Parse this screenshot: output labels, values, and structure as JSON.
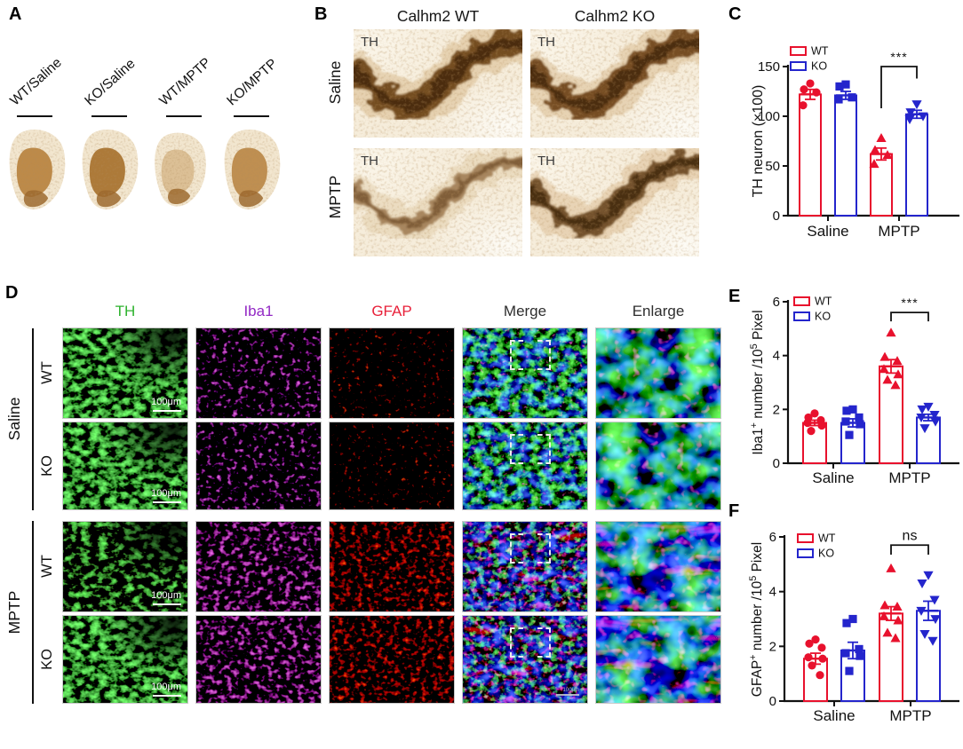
{
  "figure": {
    "panels": {
      "A": {
        "label": "A",
        "labels": [
          "WT/Saline",
          "KO/Saline",
          "WT/MPTP",
          "KO/MPTP"
        ]
      },
      "B": {
        "label": "B",
        "columns": [
          "Calhm2 WT",
          "Calhm2 KO"
        ],
        "rows": [
          "Saline",
          "MPTP"
        ],
        "stain": "TH"
      },
      "C": {
        "label": "C"
      },
      "D": {
        "label": "D",
        "columns": [
          {
            "label": "TH",
            "color": "#2fb32f"
          },
          {
            "label": "Iba1",
            "color": "#9228c4"
          },
          {
            "label": "GFAP",
            "color": "#e8213a"
          },
          {
            "label": "Merge",
            "color": "#2e2e2e"
          },
          {
            "label": "Enlarge",
            "color": "#2e2e2e"
          }
        ],
        "groups": [
          {
            "label": "Saline",
            "rows": [
              "WT",
              "KO"
            ]
          },
          {
            "label": "MPTP",
            "rows": [
              "WT",
              "KO"
            ]
          }
        ],
        "scale_bar": "100μm"
      },
      "E": {
        "label": "E"
      },
      "F": {
        "label": "F"
      }
    }
  },
  "chart_data": [
    {
      "id": "C",
      "type": "bar",
      "ylabel": "TH neuron (×100)",
      "ylabel_segments": [
        {
          "t": "TH neuron (×100)"
        }
      ],
      "ylim": [
        0,
        150
      ],
      "yticks": [
        0,
        50,
        100,
        150
      ],
      "groups": [
        "Saline",
        "MPTP"
      ],
      "legend": [
        "WT",
        "KO"
      ],
      "legend_position": "top-left",
      "colors": {
        "WT": "#e8112d",
        "KO": "#2425cc"
      },
      "bars": [
        {
          "group": "Saline",
          "series": "WT",
          "marker": "circle",
          "mean": 122,
          "sem": 5,
          "points": [
            133,
            127,
            124,
            111
          ]
        },
        {
          "group": "Saline",
          "series": "KO",
          "marker": "square",
          "mean": 121,
          "sem": 4,
          "points": [
            132,
            130,
            119,
            117
          ]
        },
        {
          "group": "MPTP",
          "series": "WT",
          "marker": "triangle-up",
          "mean": 62,
          "sem": 6,
          "points": [
            78,
            66,
            61,
            52
          ]
        },
        {
          "group": "MPTP",
          "series": "KO",
          "marker": "triangle-down",
          "mean": 102,
          "sem": 4,
          "points": [
            112,
            104,
            100,
            97
          ]
        }
      ],
      "significance": {
        "label": "***",
        "between": [
          2,
          3
        ],
        "y": 150,
        "arm_left_to": 108,
        "arm_right_to": 138
      }
    },
    {
      "id": "E",
      "type": "bar",
      "ylabel": "Iba1+ number /10^5 Pixel",
      "ylabel_segments": [
        {
          "t": "Iba1"
        },
        {
          "t": "+",
          "sup": true
        },
        {
          "t": " number /10"
        },
        {
          "t": "5",
          "sup": true
        },
        {
          "t": " Pixel"
        }
      ],
      "ylim": [
        0,
        6
      ],
      "yticks": [
        0,
        2,
        4,
        6
      ],
      "groups": [
        "Saline",
        "MPTP"
      ],
      "legend": [
        "WT",
        "KO"
      ],
      "legend_position": "top-left",
      "colors": {
        "WT": "#e8112d",
        "KO": "#2425cc"
      },
      "bars": [
        {
          "group": "Saline",
          "series": "WT",
          "marker": "circle",
          "mean": 1.5,
          "sem": 0.1,
          "points": [
            1.85,
            1.7,
            1.6,
            1.5,
            1.4,
            1.2
          ]
        },
        {
          "group": "Saline",
          "series": "KO",
          "marker": "square",
          "mean": 1.5,
          "sem": 0.15,
          "points": [
            2.0,
            1.95,
            1.7,
            1.55,
            1.45,
            1.05
          ]
        },
        {
          "group": "MPTP",
          "series": "WT",
          "marker": "triangle-up",
          "mean": 3.6,
          "sem": 0.25,
          "points": [
            4.85,
            3.95,
            3.8,
            3.5,
            3.3,
            3.1,
            2.9
          ]
        },
        {
          "group": "MPTP",
          "series": "KO",
          "marker": "triangle-down",
          "mean": 1.7,
          "sem": 0.12,
          "points": [
            2.1,
            2.0,
            1.8,
            1.7,
            1.55,
            1.3
          ]
        }
      ],
      "significance": {
        "label": "***",
        "between": [
          2,
          3
        ],
        "y": 5.6,
        "arm_left_to": 5.27,
        "arm_right_to": 5.27
      }
    },
    {
      "id": "F",
      "type": "bar",
      "ylabel": "GFAP+ number /10^5 Pixel",
      "ylabel_segments": [
        {
          "t": "GFAP"
        },
        {
          "t": "+",
          "sup": true
        },
        {
          "t": " number /10"
        },
        {
          "t": "5",
          "sup": true
        },
        {
          "t": " Pixel"
        }
      ],
      "ylim": [
        0,
        6
      ],
      "yticks": [
        0,
        2,
        4,
        6
      ],
      "groups": [
        "Saline",
        "MPTP"
      ],
      "legend": [
        "WT",
        "KO"
      ],
      "legend_position": "top-left",
      "colors": {
        "WT": "#e8112d",
        "KO": "#2425cc"
      },
      "bars": [
        {
          "group": "Saline",
          "series": "WT",
          "marker": "circle",
          "mean": 1.55,
          "sem": 0.2,
          "points": [
            2.25,
            2.1,
            1.95,
            1.6,
            1.55,
            1.3,
            0.95
          ]
        },
        {
          "group": "Saline",
          "series": "KO",
          "marker": "square",
          "mean": 1.85,
          "sem": 0.3,
          "points": [
            3.0,
            2.85,
            1.9,
            1.75,
            1.65,
            1.1
          ]
        },
        {
          "group": "MPTP",
          "series": "WT",
          "marker": "triangle-up",
          "mean": 3.2,
          "sem": 0.25,
          "points": [
            4.85,
            3.5,
            3.45,
            3.1,
            2.95,
            2.5,
            2.3
          ]
        },
        {
          "group": "MPTP",
          "series": "KO",
          "marker": "triangle-down",
          "mean": 3.3,
          "sem": 0.35,
          "points": [
            4.6,
            4.3,
            3.7,
            3.3,
            3.0,
            2.45,
            2.2
          ]
        }
      ],
      "significance": {
        "label": "ns",
        "between": [
          2,
          3
        ],
        "y": 5.7,
        "arm_left_to": 5.35,
        "arm_right_to": 5.35
      }
    }
  ]
}
